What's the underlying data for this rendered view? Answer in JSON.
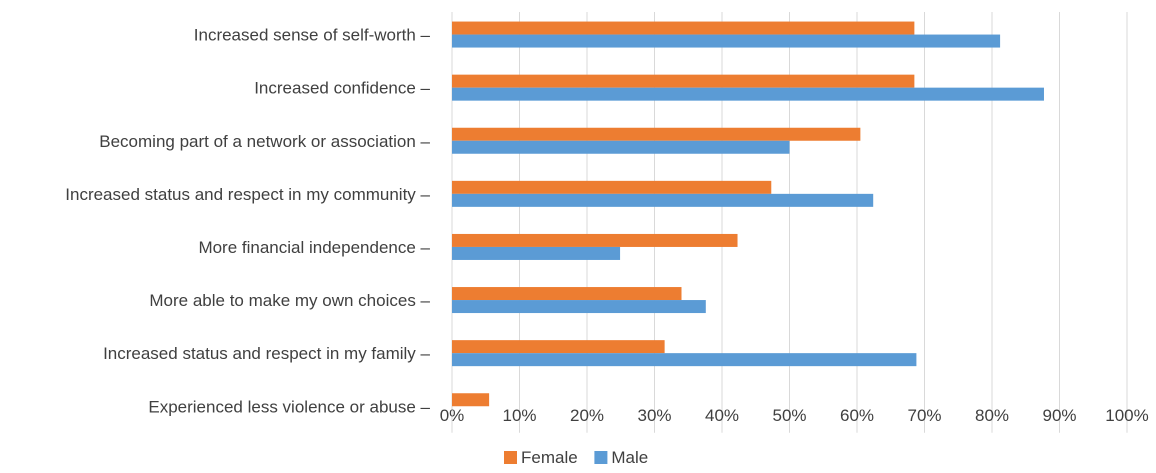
{
  "chart_data": {
    "type": "bar",
    "orientation": "horizontal",
    "categories": [
      "Increased sense of self-worth –",
      "Increased confidence –",
      "Becoming part of a network or association –",
      "Increased status and respect in my community –",
      "More financial independence –",
      "More able to make my own choices –",
      "Increased status and respect in my family –",
      "Experienced less violence or abuse –"
    ],
    "series": [
      {
        "name": "Female",
        "color": "#ed7d31",
        "values": [
          68.5,
          68.5,
          60.5,
          47.3,
          42.3,
          34.0,
          31.5,
          5.5
        ]
      },
      {
        "name": "Male",
        "color": "#5b9bd5",
        "values": [
          81.2,
          87.7,
          50.0,
          62.4,
          24.9,
          37.6,
          68.8,
          0
        ]
      }
    ],
    "xlim": [
      0,
      100
    ],
    "x_ticks": [
      "0%",
      "10%",
      "20%",
      "30%",
      "40%",
      "50%",
      "60%",
      "70%",
      "80%",
      "90%",
      "100%"
    ],
    "grid": "vertical",
    "legend": "bottom-center"
  }
}
